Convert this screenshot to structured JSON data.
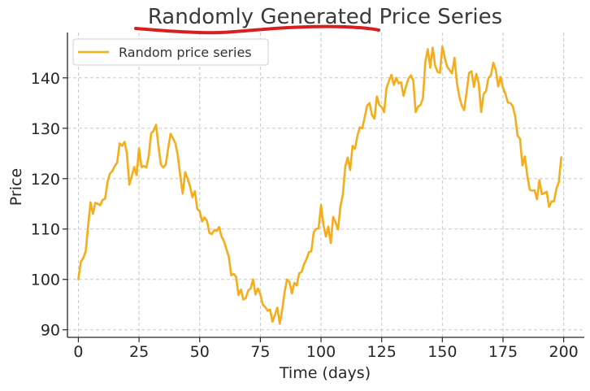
{
  "colors": {
    "series": "#f5ad19",
    "annotation": "#d62020"
  },
  "chart_data": {
    "type": "line",
    "title": "Randomly Generated Price Series",
    "xlabel": "Time (days)",
    "ylabel": "Price",
    "xlim": [
      -4.5,
      208.5
    ],
    "ylim": [
      88.5,
      149
    ],
    "xticks": [
      0,
      25,
      50,
      75,
      100,
      125,
      150,
      175,
      200
    ],
    "yticks": [
      90,
      100,
      110,
      120,
      130,
      140
    ],
    "grid": true,
    "legend_position": "top-left",
    "annotation": "red hand-drawn underline beneath the title",
    "series": [
      {
        "name": "Random price series",
        "color": "#f5ad19",
        "points": [
          [
            0,
            100
          ],
          [
            1,
            103.5
          ],
          [
            2,
            104.2
          ],
          [
            3,
            105.5
          ],
          [
            4,
            110.5
          ],
          [
            5,
            115.3
          ],
          [
            6,
            113.0
          ],
          [
            7,
            115.2
          ],
          [
            8,
            115.0
          ],
          [
            9,
            114.7
          ],
          [
            10,
            115.8
          ],
          [
            11,
            116.0
          ],
          [
            12,
            119.3
          ],
          [
            13,
            121.0
          ],
          [
            14,
            121.5
          ],
          [
            15,
            122.5
          ],
          [
            16,
            123.2
          ],
          [
            17,
            127.0
          ],
          [
            18,
            126.5
          ],
          [
            19,
            127.3
          ],
          [
            20,
            125.0
          ],
          [
            21,
            118.8
          ],
          [
            22,
            120.5
          ],
          [
            23,
            122.3
          ],
          [
            24,
            120.7
          ],
          [
            25,
            126.0
          ],
          [
            26,
            122.3
          ],
          [
            27,
            122.5
          ],
          [
            28,
            122.2
          ],
          [
            29,
            124.5
          ],
          [
            30,
            129.0
          ],
          [
            31,
            129.5
          ],
          [
            32,
            130.7
          ],
          [
            33,
            126.5
          ],
          [
            34,
            122.8
          ],
          [
            35,
            122.2
          ],
          [
            36,
            122.8
          ],
          [
            37,
            126.0
          ],
          [
            38,
            128.9
          ],
          [
            39,
            128.0
          ],
          [
            40,
            127.0
          ],
          [
            41,
            124.5
          ],
          [
            42,
            120.5
          ],
          [
            43,
            117.0
          ],
          [
            44,
            121.3
          ],
          [
            45,
            120.0
          ],
          [
            46,
            118.5
          ],
          [
            47,
            116.3
          ],
          [
            48,
            117.5
          ],
          [
            49,
            114.0
          ],
          [
            50,
            113.5
          ],
          [
            51,
            111.5
          ],
          [
            52,
            112.3
          ],
          [
            53,
            111.6
          ],
          [
            54,
            109.2
          ],
          [
            55,
            109.0
          ],
          [
            56,
            109.8
          ],
          [
            57,
            109.6
          ],
          [
            58,
            110.4
          ],
          [
            59,
            108.5
          ],
          [
            60,
            107.6
          ],
          [
            61,
            106.0
          ],
          [
            62,
            104.5
          ],
          [
            63,
            100.8
          ],
          [
            64,
            101.1
          ],
          [
            65,
            100.5
          ],
          [
            66,
            96.9
          ],
          [
            67,
            98.0
          ],
          [
            68,
            96.0
          ],
          [
            69,
            96.3
          ],
          [
            70,
            97.8
          ],
          [
            71,
            98.2
          ],
          [
            72,
            100.0
          ],
          [
            73,
            97.0
          ],
          [
            74,
            98.2
          ],
          [
            75,
            97.0
          ],
          [
            76,
            95.0
          ],
          [
            77,
            94.5
          ],
          [
            78,
            93.8
          ],
          [
            79,
            94.0
          ],
          [
            80,
            91.6
          ],
          [
            81,
            93.0
          ],
          [
            82,
            94.4
          ],
          [
            83,
            91.2
          ],
          [
            84,
            94.0
          ],
          [
            85,
            97.5
          ],
          [
            86,
            100.0
          ],
          [
            87,
            99.5
          ],
          [
            88,
            97.2
          ],
          [
            89,
            99.3
          ],
          [
            90,
            98.8
          ],
          [
            91,
            101.2
          ],
          [
            92,
            101.5
          ],
          [
            93,
            103.0
          ],
          [
            94,
            104.0
          ],
          [
            95,
            105.4
          ],
          [
            96,
            105.6
          ],
          [
            97,
            109.4
          ],
          [
            98,
            110.0
          ],
          [
            99,
            110.2
          ],
          [
            100,
            114.8
          ],
          [
            101,
            110.8
          ],
          [
            102,
            108.5
          ],
          [
            103,
            110.5
          ],
          [
            104,
            107.2
          ],
          [
            105,
            112.4
          ],
          [
            106,
            111.3
          ],
          [
            107,
            109.9
          ],
          [
            108,
            114.5
          ],
          [
            109,
            116.9
          ],
          [
            110,
            122.4
          ],
          [
            111,
            124.2
          ],
          [
            112,
            121.7
          ],
          [
            113,
            126.5
          ],
          [
            114,
            125.9
          ],
          [
            115,
            128.5
          ],
          [
            116,
            130.2
          ],
          [
            117,
            130.0
          ],
          [
            118,
            132.2
          ],
          [
            119,
            134.5
          ],
          [
            120,
            135.0
          ],
          [
            121,
            132.6
          ],
          [
            122,
            131.9
          ],
          [
            123,
            136.3
          ],
          [
            124,
            134.6
          ],
          [
            125,
            134.2
          ],
          [
            126,
            133.2
          ],
          [
            127,
            138.0
          ],
          [
            128,
            139.4
          ],
          [
            129,
            140.6
          ],
          [
            130,
            138.6
          ],
          [
            131,
            140.0
          ],
          [
            132,
            138.9
          ],
          [
            133,
            139.1
          ],
          [
            134,
            136.4
          ],
          [
            135,
            138.3
          ],
          [
            136,
            139.8
          ],
          [
            137,
            140.5
          ],
          [
            138,
            139.5
          ],
          [
            139,
            133.2
          ],
          [
            140,
            134.3
          ],
          [
            141,
            134.6
          ],
          [
            142,
            136.0
          ],
          [
            143,
            143.2
          ],
          [
            144,
            145.7
          ],
          [
            145,
            142.0
          ],
          [
            146,
            146.0
          ],
          [
            147,
            142.5
          ],
          [
            148,
            141.2
          ],
          [
            149,
            141.0
          ],
          [
            150,
            146.2
          ],
          [
            151,
            144.0
          ],
          [
            152,
            142.2
          ],
          [
            153,
            141.5
          ],
          [
            154,
            140.9
          ],
          [
            155,
            144.0
          ],
          [
            156,
            139.0
          ],
          [
            157,
            136.2
          ],
          [
            158,
            134.5
          ],
          [
            159,
            133.6
          ],
          [
            160,
            137.2
          ],
          [
            161,
            141.0
          ],
          [
            162,
            141.3
          ],
          [
            163,
            138.2
          ],
          [
            164,
            140.8
          ],
          [
            165,
            138.9
          ],
          [
            166,
            133.2
          ],
          [
            167,
            136.8
          ],
          [
            168,
            137.4
          ],
          [
            169,
            140.0
          ],
          [
            170,
            140.5
          ],
          [
            171,
            143.0
          ],
          [
            172,
            141.6
          ],
          [
            173,
            138.3
          ],
          [
            174,
            140.2
          ],
          [
            175,
            138.0
          ],
          [
            176,
            136.8
          ],
          [
            177,
            135.1
          ],
          [
            178,
            135.0
          ],
          [
            179,
            134.4
          ],
          [
            180,
            132.4
          ],
          [
            181,
            128.5
          ],
          [
            182,
            127.9
          ],
          [
            183,
            122.6
          ],
          [
            184,
            124.4
          ],
          [
            185,
            120.6
          ],
          [
            186,
            117.8
          ],
          [
            187,
            117.6
          ],
          [
            188,
            117.7
          ],
          [
            189,
            115.9
          ],
          [
            190,
            119.7
          ],
          [
            191,
            116.9
          ],
          [
            192,
            117.1
          ],
          [
            193,
            117.4
          ],
          [
            194,
            114.4
          ],
          [
            195,
            115.5
          ],
          [
            196,
            115.5
          ],
          [
            197,
            118.0
          ],
          [
            198,
            119.3
          ],
          [
            199,
            124.2
          ]
        ]
      }
    ]
  }
}
